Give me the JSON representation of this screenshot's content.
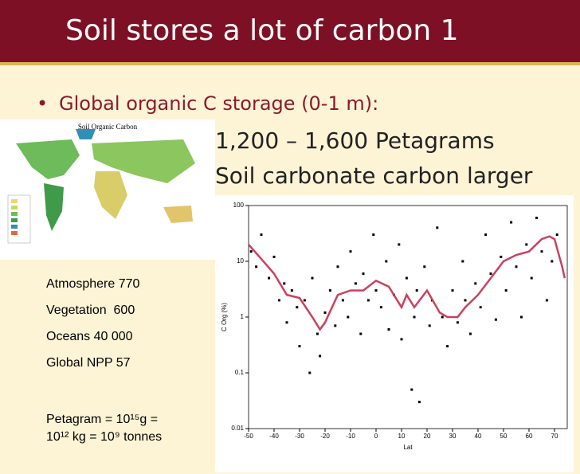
{
  "header": {
    "title": "Soil stores a lot of carbon 1"
  },
  "bullet": {
    "marker": "•",
    "text": "Global organic C storage (0-1 m):",
    "lines": [
      "1,200 – 1,600 Petagrams",
      "Soil carbonate carbon larger"
    ]
  },
  "map": {
    "title": "Soil Organic Carbon"
  },
  "stats": [
    "Atmosphere 770",
    "Vegetation  600",
    "Oceans 40 000",
    "Global NPP 57"
  ],
  "note": [
    "Petagram = 10¹⁵g =",
    "10¹² kg = 10⁹ tonnes"
  ],
  "chart_data": {
    "type": "scatter",
    "log_y": true,
    "x_label": "Lat",
    "y_label": "C Org (%)",
    "xlim": [
      -50,
      75
    ],
    "xticks": [
      -50,
      -40,
      -30,
      -20,
      -10,
      0,
      10,
      20,
      30,
      40,
      50,
      60,
      70
    ],
    "ylim": [
      0.01,
      100
    ],
    "yticks": [
      0.01,
      0.1,
      1,
      10,
      100
    ],
    "series": [
      {
        "kind": "points",
        "color": "#000000",
        "x": [
          -49,
          -47,
          -45,
          -42,
          -40,
          -38,
          -36,
          -35,
          -33,
          -31,
          -30,
          -28,
          -26,
          -25,
          -23,
          -22,
          -20,
          -18,
          -16,
          -15,
          -13,
          -11,
          -10,
          -8,
          -6,
          -5,
          -3,
          -1,
          0,
          2,
          4,
          5,
          7,
          9,
          10,
          12,
          14,
          15,
          16,
          17,
          19,
          21,
          22,
          24,
          26,
          28,
          30,
          32,
          34,
          35,
          37,
          39,
          41,
          43,
          45,
          47,
          49,
          51,
          53,
          55,
          57,
          59,
          61,
          63,
          65,
          67,
          69,
          71
        ],
        "values": [
          15,
          8,
          30,
          5,
          12,
          2,
          4,
          0.8,
          3,
          1.5,
          0.3,
          2,
          0.1,
          5,
          0.5,
          0.2,
          1.2,
          3,
          0.7,
          8,
          2,
          1,
          15,
          4,
          0.5,
          6,
          2,
          30,
          3,
          1.5,
          10,
          0.6,
          2.5,
          20,
          0.4,
          5,
          0.05,
          1,
          3,
          0.03,
          8,
          0.7,
          2,
          40,
          1,
          0.3,
          3,
          0.8,
          10,
          2,
          0.5,
          4,
          1.5,
          30,
          6,
          0.9,
          12,
          3,
          50,
          8,
          1,
          20,
          5,
          60,
          15,
          2,
          10,
          30
        ]
      },
      {
        "kind": "trend",
        "color": "#c9415f",
        "x": [
          -50,
          -45,
          -40,
          -35,
          -30,
          -25,
          -22,
          -20,
          -15,
          -10,
          -5,
          0,
          5,
          10,
          12,
          15,
          20,
          25,
          28,
          32,
          35,
          40,
          45,
          50,
          55,
          60,
          65,
          68,
          70,
          73,
          74
        ],
        "values": [
          20,
          11,
          6,
          2.5,
          2.2,
          1.0,
          0.6,
          0.8,
          2.5,
          3,
          3,
          4.5,
          3.5,
          1.5,
          2.5,
          1.5,
          3,
          1.2,
          1.0,
          1.0,
          1.5,
          2.5,
          5,
          10,
          13,
          15,
          25,
          28,
          25,
          8,
          5
        ]
      }
    ]
  }
}
